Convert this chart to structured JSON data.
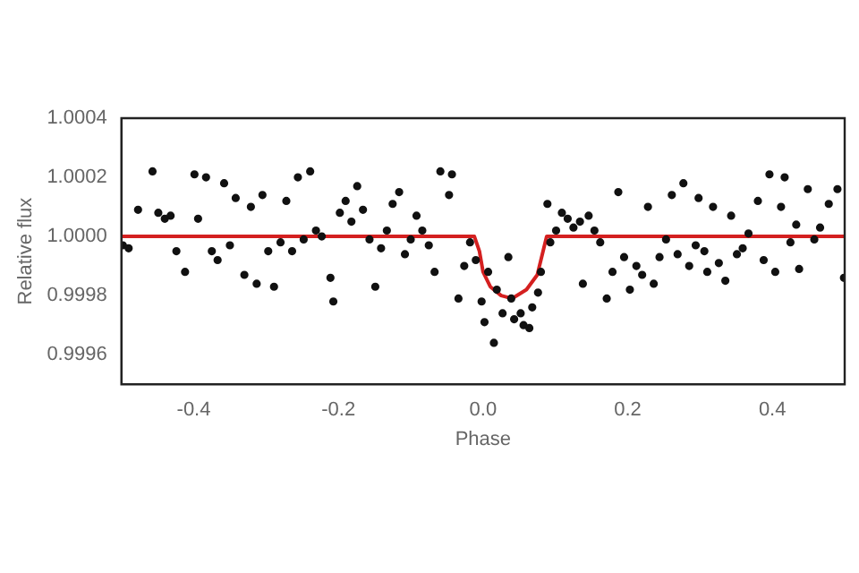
{
  "chart_data": {
    "type": "scatter",
    "xlabel": "Phase",
    "ylabel": "Relative flux",
    "xlim": [
      -0.5,
      0.5
    ],
    "ylim": [
      0.9995,
      1.0004
    ],
    "xticks": [
      -0.4,
      -0.2,
      {
        "value": 0,
        "label": "0.0"
      },
      0.2,
      0.4
    ],
    "yticks": [
      0.9996,
      0.9998,
      {
        "value": 1,
        "label": "1.0000"
      },
      1.0002,
      1.0004
    ],
    "grid": false,
    "legend": false,
    "series": [
      {
        "color": "#111111",
        "marker": "circle",
        "x": [
          -0.498,
          -0.49,
          -0.477,
          -0.457,
          -0.449,
          -0.44,
          -0.432,
          -0.424,
          -0.412,
          -0.399,
          -0.394,
          -0.383,
          -0.375,
          -0.367,
          -0.358,
          -0.35,
          -0.342,
          -0.33,
          -0.321,
          -0.313,
          -0.305,
          -0.297,
          -0.289,
          -0.28,
          -0.272,
          -0.264,
          -0.256,
          -0.248,
          -0.239,
          -0.231,
          -0.223,
          -0.211,
          -0.207,
          -0.198,
          -0.19,
          -0.182,
          -0.174,
          -0.166,
          -0.157,
          -0.149,
          -0.141,
          -0.133,
          -0.125,
          -0.116,
          -0.108,
          -0.1,
          -0.092,
          -0.084,
          -0.075,
          -0.067,
          -0.059,
          -0.047,
          -0.043,
          -0.034,
          -0.026,
          -0.018,
          -0.01,
          -0.002,
          0.002,
          0.007,
          0.015,
          0.019,
          0.027,
          0.035,
          0.039,
          0.043,
          0.052,
          0.056,
          0.064,
          0.068,
          0.076,
          0.08,
          0.089,
          0.093,
          0.101,
          0.109,
          0.117,
          0.125,
          0.134,
          0.138,
          0.146,
          0.154,
          0.162,
          0.171,
          0.179,
          0.187,
          0.195,
          0.203,
          0.212,
          0.22,
          0.228,
          0.236,
          0.244,
          0.253,
          0.261,
          0.269,
          0.277,
          0.285,
          0.294,
          0.298,
          0.306,
          0.31,
          0.318,
          0.326,
          0.335,
          0.343,
          0.351,
          0.359,
          0.367,
          0.38,
          0.388,
          0.396,
          0.404,
          0.412,
          0.417,
          0.425,
          0.433,
          0.437,
          0.449,
          0.458,
          0.466,
          0.478,
          0.49,
          0.499
        ],
        "values": [
          0.99997,
          0.99996,
          1.00009,
          1.00022,
          1.00008,
          1.00006,
          1.00007,
          0.99995,
          0.99988,
          1.00021,
          1.00006,
          1.0002,
          0.99995,
          0.99992,
          1.00018,
          0.99997,
          1.00013,
          0.99987,
          1.0001,
          0.99984,
          1.00014,
          0.99995,
          0.99983,
          0.99998,
          1.00012,
          0.99995,
          1.0002,
          0.99999,
          1.00022,
          1.00002,
          1.0,
          0.99986,
          0.99978,
          1.00008,
          1.00012,
          1.00005,
          1.00017,
          1.00009,
          0.99999,
          0.99983,
          0.99996,
          1.00002,
          1.00011,
          1.00015,
          0.99994,
          0.99999,
          1.00007,
          1.00002,
          0.99997,
          0.99988,
          1.00022,
          1.00014,
          1.00021,
          0.99979,
          0.9999,
          0.99998,
          0.99992,
          0.99978,
          0.99971,
          0.99988,
          0.99964,
          0.99982,
          0.99974,
          0.99993,
          0.99979,
          0.99972,
          0.99974,
          0.9997,
          0.99969,
          0.99976,
          0.99981,
          0.99988,
          1.00011,
          0.99998,
          1.00002,
          1.00008,
          1.00006,
          1.00003,
          1.00005,
          0.99984,
          1.00007,
          1.00002,
          0.99998,
          0.99979,
          0.99988,
          1.00015,
          0.99993,
          0.99982,
          0.9999,
          0.99987,
          1.0001,
          0.99984,
          0.99993,
          0.99999,
          1.00014,
          0.99994,
          1.00018,
          0.9999,
          0.99997,
          1.00013,
          0.99995,
          0.99988,
          1.0001,
          0.99991,
          0.99985,
          1.00007,
          0.99994,
          0.99996,
          1.00001,
          1.00012,
          0.99992,
          1.00021,
          0.99988,
          1.0001,
          1.0002,
          0.99998,
          1.00004,
          0.99989,
          1.00016,
          0.99999,
          1.00003,
          1.00011,
          1.00016,
          0.99986
        ]
      },
      {
        "type": "line",
        "color": "#d42020",
        "marker": "none",
        "line_style": "solid",
        "x": [
          -0.5,
          -0.012,
          -0.005,
          0.0,
          0.01,
          0.025,
          0.04,
          0.06,
          0.075,
          0.083,
          0.088,
          0.5
        ],
        "values": [
          1.0,
          1.0,
          0.99995,
          0.99988,
          0.99983,
          0.9998,
          0.99979,
          0.99982,
          0.99987,
          0.99995,
          1.0,
          1.0
        ]
      }
    ]
  }
}
